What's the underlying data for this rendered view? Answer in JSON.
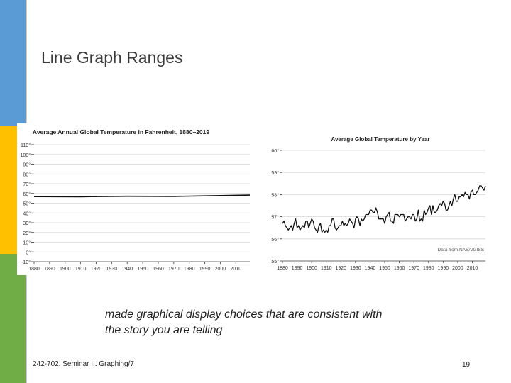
{
  "slide": {
    "title": "Line Graph Ranges",
    "caption_line1": "made graphical display choices that are consistent with",
    "caption_line2": "the story you are telling",
    "footer": "242-702. Seminar II. Graphing/7",
    "page_number": "19"
  },
  "colors": {
    "blue": "#5b9bd5",
    "yellow": "#ffc000",
    "green": "#70ad47",
    "line": "#111111"
  },
  "chart_data": [
    {
      "type": "line",
      "title": "Average Annual Global Temperature in Fahrenheit, 1880–2019",
      "xlabel": "",
      "ylabel": "",
      "xlim": [
        1880,
        2019
      ],
      "ylim": [
        -10,
        110
      ],
      "x_ticks": [
        "1880",
        "1890",
        "1900",
        "1910",
        "1920",
        "1930",
        "1940",
        "1950",
        "1960",
        "1970",
        "1980",
        "1990",
        "2000",
        "2010"
      ],
      "y_ticks": [
        "110°",
        "100°",
        "90°",
        "80°",
        "70°",
        "60°",
        "50°",
        "40°",
        "30°",
        "20°",
        "10°",
        "0°",
        "-10°"
      ],
      "y_tick_values": [
        110,
        100,
        90,
        80,
        70,
        60,
        50,
        40,
        30,
        20,
        10,
        0,
        -10
      ],
      "grid": true,
      "series": [
        {
          "x": [
            1880,
            1910,
            1940,
            1970,
            2000,
            2019
          ],
          "y": [
            56.8,
            56.6,
            57.1,
            57.0,
            57.8,
            58.3
          ]
        }
      ]
    },
    {
      "type": "line",
      "title": "Average Global Temperature by Year",
      "xlabel": "",
      "ylabel": "",
      "xlim": [
        1880,
        2019
      ],
      "ylim": [
        55,
        60
      ],
      "x_ticks": [
        "1880",
        "1890",
        "1900",
        "1910",
        "1920",
        "1930",
        "1940",
        "1950",
        "1960",
        "1970",
        "1980",
        "1990",
        "2000",
        "2010"
      ],
      "y_ticks": [
        "60°",
        "59°",
        "58°",
        "57°",
        "56°",
        "55°"
      ],
      "y_tick_values": [
        60,
        59,
        58,
        57,
        56,
        55
      ],
      "grid": true,
      "source_note": "Data from NASA/GISS",
      "series": [
        {
          "x": [
            1880,
            1881,
            1882,
            1883,
            1884,
            1885,
            1886,
            1887,
            1888,
            1889,
            1890,
            1891,
            1892,
            1893,
            1894,
            1895,
            1896,
            1897,
            1898,
            1899,
            1900,
            1901,
            1902,
            1903,
            1904,
            1905,
            1906,
            1907,
            1908,
            1909,
            1910,
            1911,
            1912,
            1913,
            1914,
            1915,
            1916,
            1917,
            1918,
            1919,
            1920,
            1921,
            1922,
            1923,
            1924,
            1925,
            1926,
            1927,
            1928,
            1929,
            1930,
            1931,
            1932,
            1933,
            1934,
            1935,
            1936,
            1937,
            1938,
            1939,
            1940,
            1941,
            1942,
            1943,
            1944,
            1945,
            1946,
            1947,
            1948,
            1949,
            1950,
            1951,
            1952,
            1953,
            1954,
            1955,
            1956,
            1957,
            1958,
            1959,
            1960,
            1961,
            1962,
            1963,
            1964,
            1965,
            1966,
            1967,
            1968,
            1969,
            1970,
            1971,
            1972,
            1973,
            1974,
            1975,
            1976,
            1977,
            1978,
            1979,
            1980,
            1981,
            1982,
            1983,
            1984,
            1985,
            1986,
            1987,
            1988,
            1989,
            1990,
            1991,
            1992,
            1993,
            1994,
            1995,
            1996,
            1997,
            1998,
            1999,
            2000,
            2001,
            2002,
            2003,
            2004,
            2005,
            2006,
            2007,
            2008,
            2009,
            2010,
            2011,
            2012,
            2013,
            2014,
            2015,
            2016,
            2017,
            2018,
            2019
          ],
          "y": [
            56.7,
            56.8,
            56.6,
            56.5,
            56.4,
            56.5,
            56.6,
            56.4,
            56.7,
            56.9,
            56.5,
            56.6,
            56.4,
            56.5,
            56.6,
            56.5,
            56.8,
            56.8,
            56.5,
            56.7,
            56.9,
            56.8,
            56.5,
            56.4,
            56.3,
            56.6,
            56.7,
            56.3,
            56.4,
            56.3,
            56.4,
            56.3,
            56.6,
            56.6,
            56.9,
            56.9,
            56.5,
            56.4,
            56.5,
            56.6,
            56.6,
            56.8,
            56.6,
            56.7,
            56.6,
            56.7,
            56.9,
            56.8,
            56.7,
            56.5,
            56.9,
            57.0,
            56.9,
            56.6,
            56.9,
            56.8,
            56.9,
            57.1,
            57.1,
            57.1,
            57.3,
            57.3,
            57.2,
            57.2,
            57.4,
            57.2,
            56.9,
            56.9,
            56.9,
            56.9,
            56.7,
            57.0,
            57.1,
            57.2,
            56.8,
            56.8,
            56.7,
            57.1,
            57.1,
            57.1,
            57.0,
            57.1,
            57.1,
            57.1,
            56.8,
            56.9,
            57.0,
            57.0,
            56.9,
            57.1,
            57.1,
            56.8,
            56.9,
            57.3,
            56.8,
            56.9,
            56.8,
            57.3,
            57.1,
            57.2,
            57.4,
            57.5,
            57.1,
            57.5,
            57.2,
            57.2,
            57.3,
            57.5,
            57.6,
            57.5,
            57.7,
            57.6,
            57.3,
            57.3,
            57.5,
            57.7,
            57.5,
            57.8,
            58.0,
            57.7,
            57.7,
            57.9,
            57.9,
            58.0,
            57.9,
            58.1,
            58.0,
            58.0,
            57.8,
            58.1,
            58.2,
            58.0,
            58.0,
            58.1,
            58.2,
            58.4,
            58.4,
            58.3,
            58.2,
            58.4
          ]
        }
      ]
    }
  ]
}
